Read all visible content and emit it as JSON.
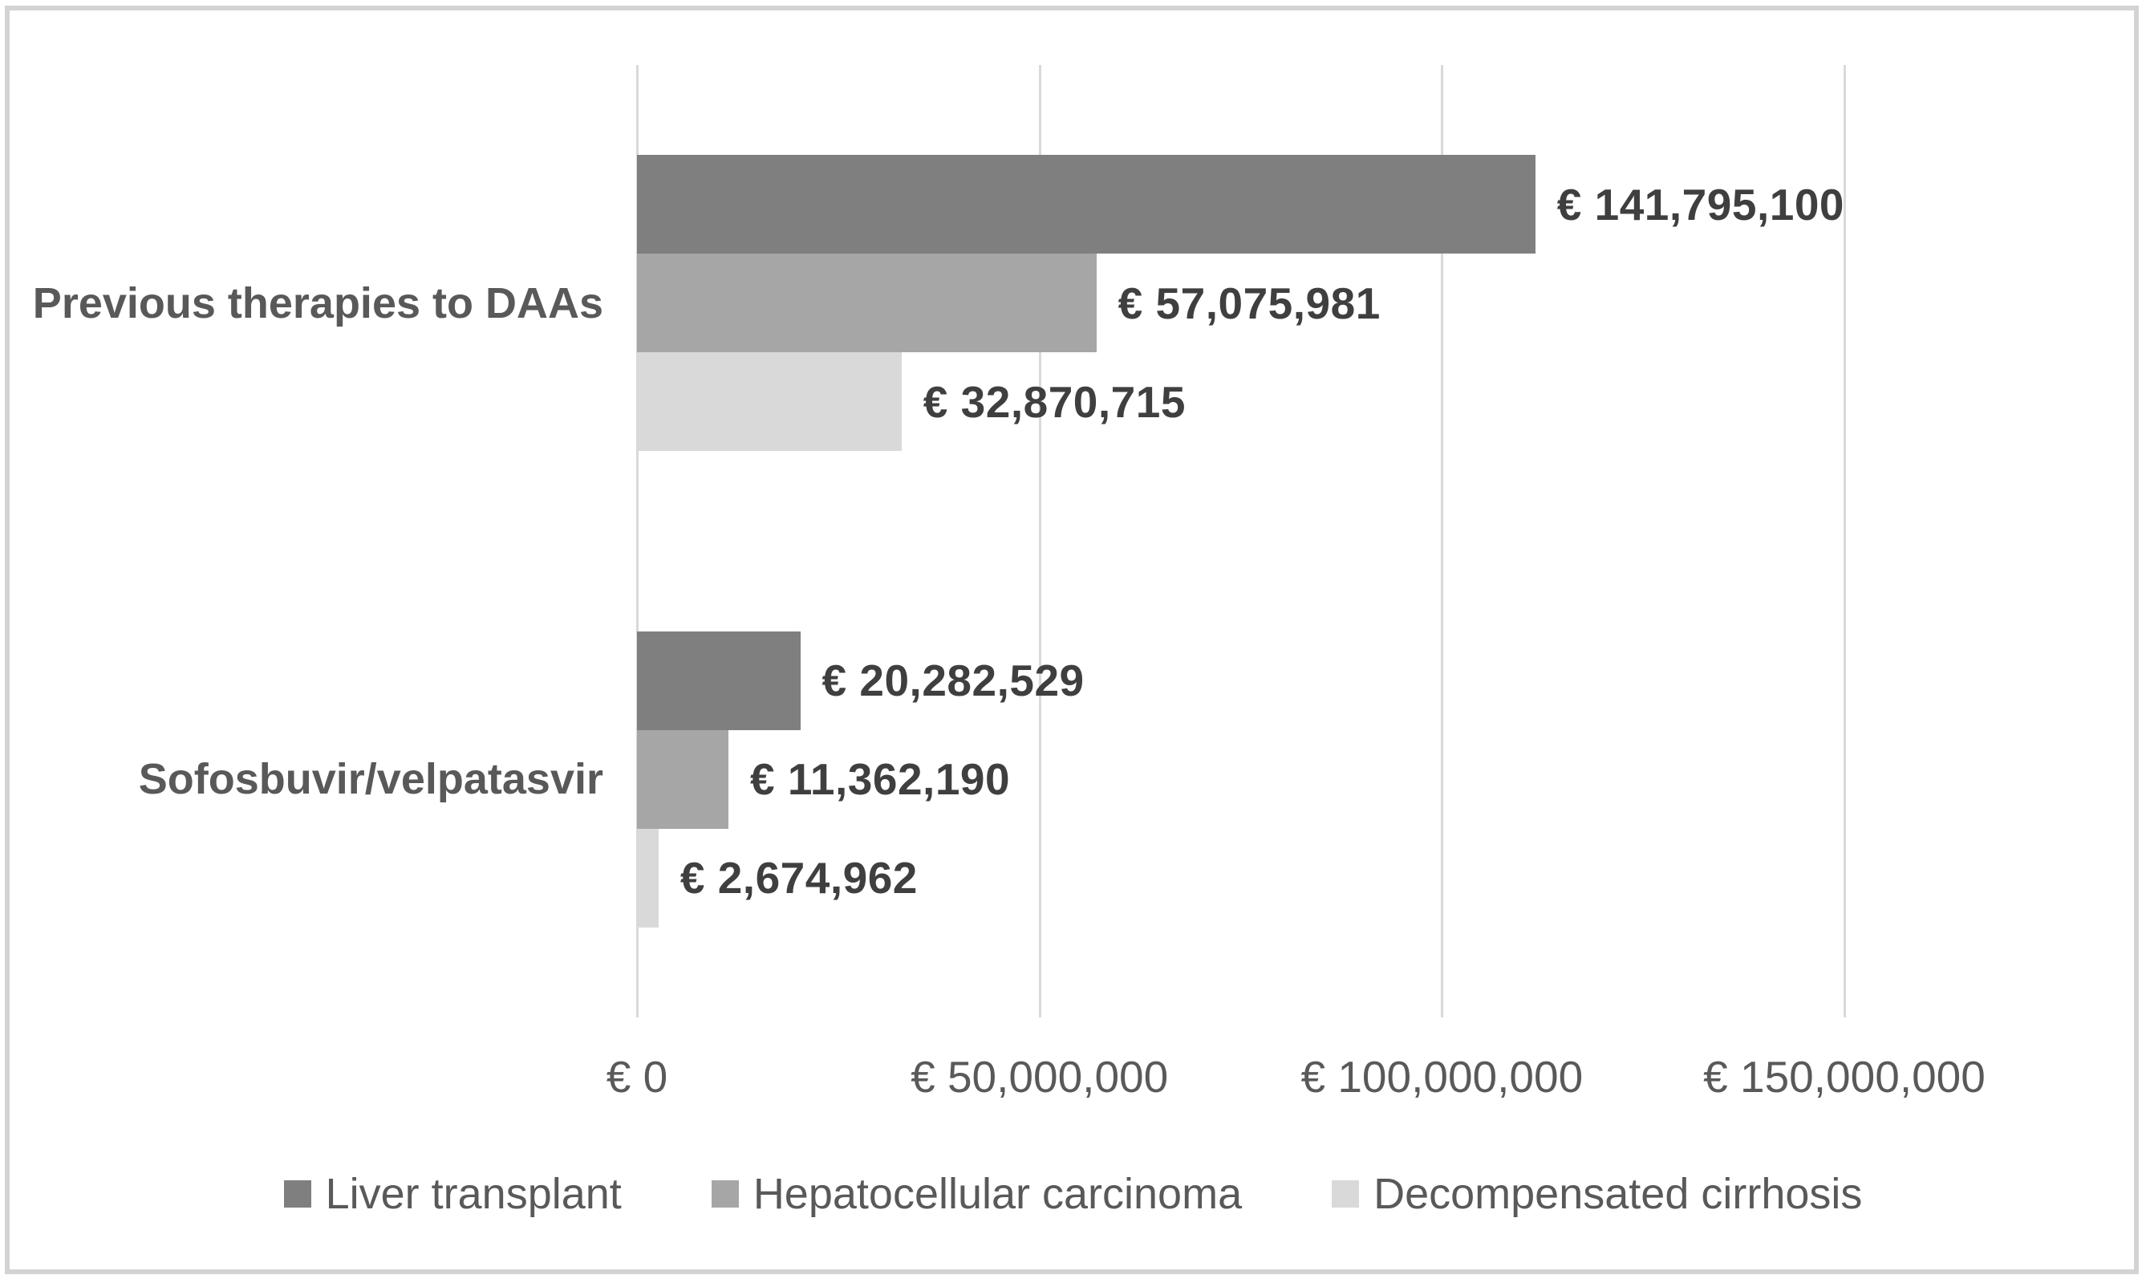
{
  "chart_data": {
    "type": "bar",
    "orientation": "horizontal",
    "title": "",
    "categories": [
      "Previous therapies to DAAs",
      "Sofosbuvir/velpatasvir"
    ],
    "series": [
      {
        "name": "Liver transplant",
        "color": "#7f7f7f",
        "values": [
          141795100,
          20282529
        ],
        "data_labels": [
          "€ 141,795,100",
          "€ 20,282,529"
        ]
      },
      {
        "name": "Hepatocellular carcinoma",
        "color": "#a6a6a6",
        "values": [
          57075981,
          11362190
        ],
        "data_labels": [
          "€ 57,075,981",
          "€ 11,362,190"
        ]
      },
      {
        "name": "Decompensated cirrhosis",
        "color": "#d9d9d9",
        "values": [
          32870715,
          2674962
        ],
        "data_labels": [
          "€ 32,870,715",
          "€ 2,674,962"
        ]
      }
    ],
    "x_axis": {
      "min": 0,
      "max": 150000000,
      "ticks": [
        {
          "value": 0,
          "label": "€ 0"
        },
        {
          "value": 50000000,
          "label": "€ 50,000,000"
        },
        {
          "value": 100000000,
          "label": "€ 100,000,000"
        },
        {
          "value": 150000000,
          "label": "€ 150,000,000"
        }
      ]
    },
    "legend": {
      "position": "bottom",
      "entries": [
        "Liver transplant",
        "Hepatocellular carcinoma",
        "Decompensated cirrhosis"
      ]
    },
    "grid": true,
    "colors": {
      "data_label": "#3f3f3f",
      "axis_text": "#595959",
      "gridline": "#d9d9d9",
      "frame_border": "#d3d3d3",
      "background": "#ffffff"
    }
  }
}
